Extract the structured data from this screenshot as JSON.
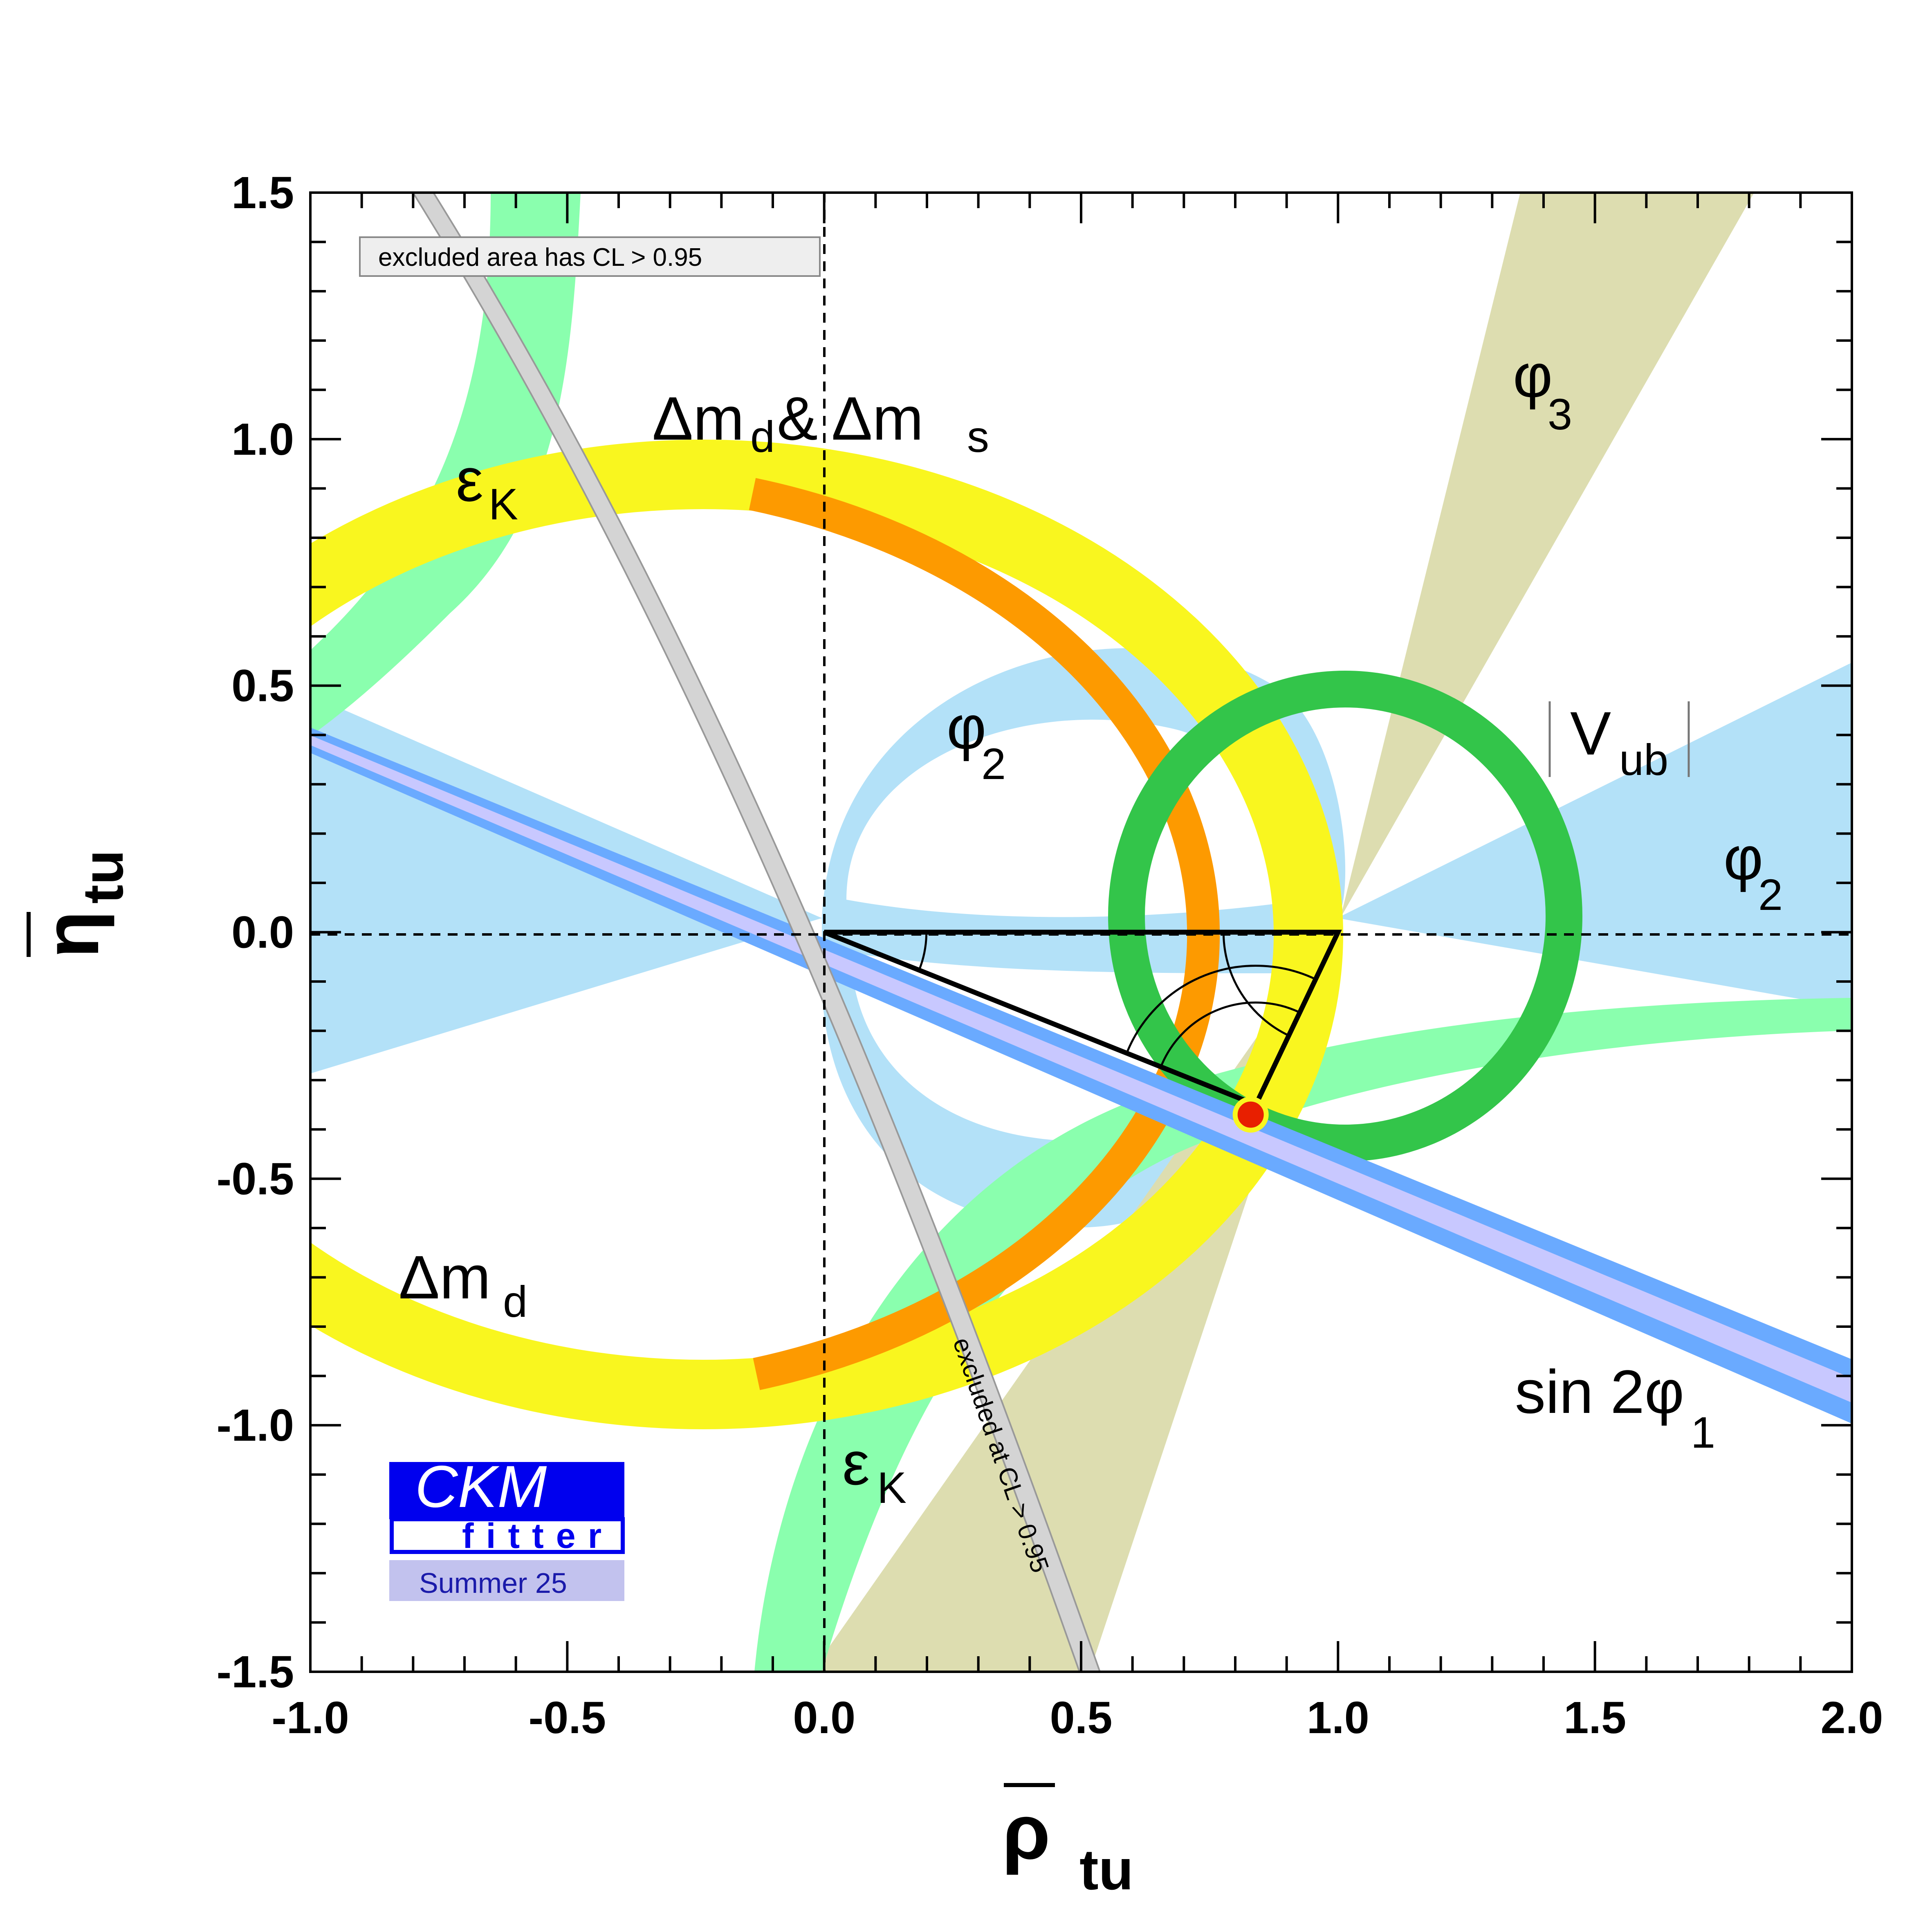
{
  "chart_data": {
    "type": "scatter",
    "title": "",
    "xlabel": "ρ̄tu",
    "ylabel": "η̄tu",
    "xlabel_symbol": "ρ",
    "xlabel_sub": "tu",
    "ylabel_symbol": "η",
    "ylabel_sub": "tu",
    "xlim": [
      -1.0,
      2.0
    ],
    "ylim": [
      -1.5,
      1.5
    ],
    "x_ticks": [
      {
        "value": -1.0,
        "label": "-1.0"
      },
      {
        "value": -0.5,
        "label": "-0.5"
      },
      {
        "value": 0.0,
        "label": "0.0"
      },
      {
        "value": 0.5,
        "label": "0.5"
      },
      {
        "value": 1.0,
        "label": "1.0"
      },
      {
        "value": 1.5,
        "label": "1.5"
      },
      {
        "value": 2.0,
        "label": "2.0"
      }
    ],
    "y_ticks": [
      {
        "value": 1.5,
        "label": "1.5"
      },
      {
        "value": 1.0,
        "label": "1.0"
      },
      {
        "value": 0.5,
        "label": "0.5"
      },
      {
        "value": 0.0,
        "label": "0.0"
      },
      {
        "value": -0.5,
        "label": "-0.5"
      },
      {
        "value": -1.0,
        "label": "-1.0"
      },
      {
        "value": -1.5,
        "label": "-1.5"
      }
    ],
    "grid": false,
    "constraints": [
      {
        "name": "phi2",
        "color": "#b3e1f8"
      },
      {
        "name": "Vub",
        "color": "#33c54a"
      },
      {
        "name": "Dmd",
        "color": "#f9f61f"
      },
      {
        "name": "DmdDms",
        "color": "#fd9a00"
      },
      {
        "name": "eK",
        "color": "#8affae"
      },
      {
        "name": "phi3",
        "color": "#ddddb0"
      },
      {
        "name": "sin2phi1",
        "color": "#6aaaff"
      },
      {
        "name": "exclusion",
        "color": "#d4d4d4"
      }
    ],
    "triangle": {
      "apex": {
        "x": 0.84,
        "y": -0.35
      },
      "vertices": [
        {
          "x": 0.0,
          "y": 0.0
        },
        {
          "x": 1.0,
          "y": 0.0
        },
        {
          "x": 0.84,
          "y": -0.35
        }
      ]
    },
    "best_fit": {
      "x": 0.83,
      "y": -0.37,
      "color": "#e81f00"
    }
  },
  "labels": {
    "Dmd_Dms": {
      "main": "Δm",
      "sub1": "d",
      "amp": " & Δm",
      "sub2": "s"
    },
    "Dmd": {
      "main": "Δm",
      "sub": "d"
    },
    "eK_upper": {
      "main": "ε",
      "sub": "K"
    },
    "eK_lower": {
      "main": "ε",
      "sub": "K"
    },
    "phi2_inner": {
      "main": "φ",
      "sub": "2"
    },
    "phi2_right": {
      "main": "φ",
      "sub": "2"
    },
    "phi3": {
      "main": "φ",
      "sub": "3"
    },
    "Vub": {
      "main": "V",
      "sub": "ub"
    },
    "sin2phi1": {
      "main": "sin 2φ",
      "sub": "1"
    }
  },
  "notes": {
    "excluded_area": "excluded area has CL > 0.95",
    "excluded_cl": "excluded at CL > 0.95"
  },
  "logo": {
    "main": "CKM",
    "sub": "fitter",
    "date": "Summer 25",
    "colors": {
      "main_bg": "#0000ee",
      "date_bg": "#c2c2ee"
    }
  }
}
